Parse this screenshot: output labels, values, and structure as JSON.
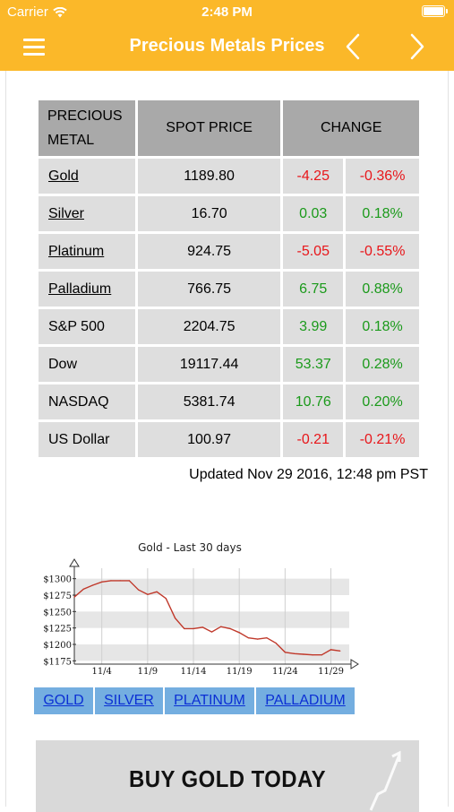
{
  "status_bar": {
    "carrier": "Carrier",
    "time": "2:48 PM"
  },
  "nav": {
    "title": "Precious Metals Prices"
  },
  "table": {
    "headers": [
      "PRECIOUS METAL",
      "SPOT PRICE",
      "CHANGE"
    ],
    "header_lines": [
      "PRECIOUS",
      "METAL"
    ],
    "rows": [
      {
        "name": "Gold",
        "price": "1189.80",
        "change": "-4.25",
        "pct": "-0.36%",
        "link": true,
        "dir": "neg"
      },
      {
        "name": "Silver",
        "price": "16.70",
        "change": "0.03",
        "pct": "0.18%",
        "link": true,
        "dir": "pos"
      },
      {
        "name": "Platinum",
        "price": "924.75",
        "change": "-5.05",
        "pct": "-0.55%",
        "link": true,
        "dir": "neg"
      },
      {
        "name": "Palladium",
        "price": "766.75",
        "change": "6.75",
        "pct": "0.88%",
        "link": true,
        "dir": "pos"
      },
      {
        "name": "S&P 500",
        "price": "2204.75",
        "change": "3.99",
        "pct": "0.18%",
        "link": false,
        "dir": "pos"
      },
      {
        "name": "Dow",
        "price": "19117.44",
        "change": "53.37",
        "pct": "0.28%",
        "link": false,
        "dir": "pos"
      },
      {
        "name": "NASDAQ",
        "price": "5381.74",
        "change": "10.76",
        "pct": "0.20%",
        "link": false,
        "dir": "pos"
      },
      {
        "name": "US Dollar",
        "price": "100.97",
        "change": "-0.21",
        "pct": "-0.21%",
        "link": false,
        "dir": "neg"
      }
    ]
  },
  "updated": "Updated Nov 29 2016, 12:48 pm PST",
  "chart_data": {
    "type": "line",
    "title": "Gold - Last 30 days",
    "xlabel": "",
    "ylabel": "",
    "x_ticks": [
      "11/4",
      "11/9",
      "11/14",
      "11/19",
      "11/24",
      "11/29"
    ],
    "y_ticks": [
      "$1300",
      "$1275",
      "$1250",
      "$1225",
      "$1200",
      "$1175"
    ],
    "y_tick_values": [
      1300,
      1275,
      1250,
      1225,
      1200,
      1175
    ],
    "ylim": [
      1170,
      1305
    ],
    "xlim": [
      0,
      30
    ],
    "x": [
      0,
      1,
      2,
      3,
      4,
      5,
      6,
      7,
      8,
      9,
      10,
      11,
      12,
      13,
      14,
      15,
      16,
      17,
      18,
      19,
      20,
      21,
      22,
      23,
      24,
      25,
      26,
      27,
      28,
      29
    ],
    "values": [
      1272,
      1284,
      1290,
      1295,
      1297,
      1297,
      1297,
      1283,
      1276,
      1280,
      1270,
      1240,
      1224,
      1224,
      1226,
      1219,
      1227,
      1224,
      1218,
      1210,
      1208,
      1210,
      1202,
      1188,
      1186,
      1185,
      1184,
      1184,
      1192,
      1190
    ],
    "series_color": "#c0392b",
    "grid": true,
    "legend": "none"
  },
  "metal_tabs": [
    "GOLD",
    "SILVER",
    "PLATINUM",
    "PALLADIUM"
  ],
  "banner": {
    "text": "BUY GOLD TODAY"
  },
  "colors": {
    "accent": "#fbb829",
    "negative": "#e8161a",
    "positive": "#1b9a1b",
    "tab_bg": "#74aee0",
    "link": "#0b2fd4"
  }
}
